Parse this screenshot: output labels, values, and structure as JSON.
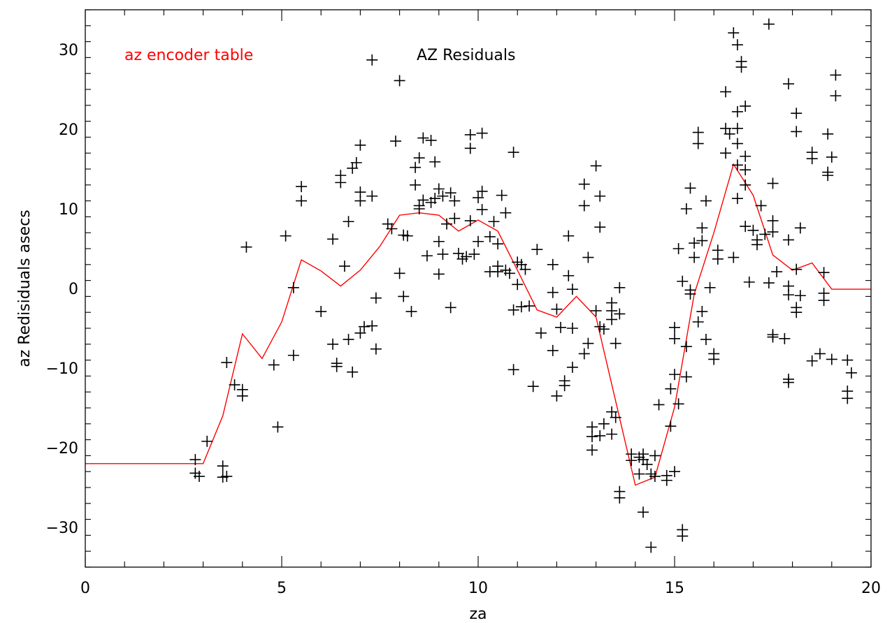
{
  "chart_data": {
    "type": "scatter",
    "xlabel": "za",
    "ylabel": "az Redisiduals asecs",
    "xlim": [
      0,
      20
    ],
    "ylim": [
      -35,
      35
    ],
    "x_ticks": [
      0,
      5,
      10,
      15,
      20
    ],
    "y_ticks": [
      -30,
      -20,
      -10,
      0,
      10,
      20,
      30
    ],
    "x_tick_labels": [
      "0",
      "5",
      "10",
      "15",
      "20"
    ],
    "y_tick_labels": [
      "−30",
      "−20",
      "−10",
      "0",
      "10",
      "20",
      "30"
    ],
    "grid": false,
    "annotations": {
      "series_label": "az encoder table",
      "title_label": "AZ Residuals"
    },
    "colors": {
      "points": "#000000",
      "line": "#ff0000",
      "frame": "#000000"
    },
    "points": [
      [
        2.8,
        -21.5
      ],
      [
        2.8,
        -23.2
      ],
      [
        2.9,
        -23.6
      ],
      [
        3.1,
        -19.2
      ],
      [
        3.5,
        -22.3
      ],
      [
        3.5,
        -23.7
      ],
      [
        3.6,
        -9.3
      ],
      [
        3.6,
        -23.6
      ],
      [
        3.8,
        -12.1
      ],
      [
        4.0,
        -12.7
      ],
      [
        4.0,
        -13.5
      ],
      [
        4.1,
        5.2
      ],
      [
        4.8,
        -9.6
      ],
      [
        4.9,
        -17.4
      ],
      [
        5.1,
        6.6
      ],
      [
        5.3,
        0.1
      ],
      [
        5.3,
        -8.4
      ],
      [
        5.5,
        11.0
      ],
      [
        5.5,
        12.8
      ],
      [
        6.0,
        -2.9
      ],
      [
        6.3,
        6.2
      ],
      [
        6.3,
        -7.0
      ],
      [
        6.4,
        -9.4
      ],
      [
        6.4,
        -9.8
      ],
      [
        6.5,
        13.3
      ],
      [
        6.5,
        14.2
      ],
      [
        6.6,
        2.8
      ],
      [
        6.7,
        8.4
      ],
      [
        6.7,
        -6.4
      ],
      [
        6.8,
        -10.5
      ],
      [
        6.8,
        15.1
      ],
      [
        6.9,
        15.8
      ],
      [
        7.0,
        -5.6
      ],
      [
        7.0,
        12.1
      ],
      [
        7.0,
        11.0
      ],
      [
        7.0,
        18.0
      ],
      [
        7.1,
        -4.8
      ],
      [
        7.3,
        -4.7
      ],
      [
        7.3,
        11.6
      ],
      [
        7.3,
        28.7
      ],
      [
        7.4,
        -1.2
      ],
      [
        7.4,
        -7.6
      ],
      [
        7.7,
        8.1
      ],
      [
        7.8,
        7.5
      ],
      [
        7.9,
        18.5
      ],
      [
        8.0,
        26.1
      ],
      [
        8.0,
        1.9
      ],
      [
        8.1,
        6.7
      ],
      [
        8.1,
        -1.0
      ],
      [
        8.2,
        6.6
      ],
      [
        8.3,
        -2.9
      ],
      [
        8.4,
        13.0
      ],
      [
        8.4,
        15.2
      ],
      [
        8.5,
        16.4
      ],
      [
        8.5,
        10.4
      ],
      [
        8.5,
        10.0
      ],
      [
        8.6,
        18.9
      ],
      [
        8.6,
        11.1
      ],
      [
        8.7,
        4.1
      ],
      [
        8.8,
        18.6
      ],
      [
        8.8,
        10.8
      ],
      [
        8.9,
        15.9
      ],
      [
        8.9,
        11.3
      ],
      [
        9.0,
        5.9
      ],
      [
        9.0,
        1.8
      ],
      [
        9.0,
        12.5
      ],
      [
        9.1,
        11.6
      ],
      [
        9.1,
        4.3
      ],
      [
        9.2,
        8.1
      ],
      [
        9.3,
        -2.4
      ],
      [
        9.3,
        12.0
      ],
      [
        9.4,
        8.8
      ],
      [
        9.4,
        11.0
      ],
      [
        9.5,
        4.4
      ],
      [
        9.6,
        3.7
      ],
      [
        9.7,
        4.0
      ],
      [
        9.8,
        8.5
      ],
      [
        9.8,
        17.6
      ],
      [
        9.8,
        19.3
      ],
      [
        9.9,
        4.3
      ],
      [
        10.0,
        5.9
      ],
      [
        10.0,
        11.4
      ],
      [
        10.1,
        19.5
      ],
      [
        10.1,
        12.2
      ],
      [
        10.1,
        9.9
      ],
      [
        10.3,
        2.1
      ],
      [
        10.3,
        6.5
      ],
      [
        10.4,
        8.4
      ],
      [
        10.5,
        5.6
      ],
      [
        10.5,
        2.8
      ],
      [
        10.5,
        2.1
      ],
      [
        10.6,
        11.7
      ],
      [
        10.7,
        9.5
      ],
      [
        10.7,
        2.3
      ],
      [
        10.8,
        1.9
      ],
      [
        10.9,
        17.1
      ],
      [
        10.9,
        -2.7
      ],
      [
        10.9,
        -10.2
      ],
      [
        11.0,
        3.3
      ],
      [
        11.0,
        0.5
      ],
      [
        11.1,
        3.0
      ],
      [
        11.1,
        -2.3
      ],
      [
        11.2,
        2.4
      ],
      [
        11.3,
        -2.2
      ],
      [
        11.4,
        -12.3
      ],
      [
        11.5,
        4.9
      ],
      [
        11.6,
        -5.6
      ],
      [
        11.9,
        -7.8
      ],
      [
        11.9,
        3.0
      ],
      [
        11.9,
        -0.5
      ],
      [
        12.0,
        -13.5
      ],
      [
        12.0,
        -2.6
      ],
      [
        12.1,
        -4.9
      ],
      [
        12.2,
        -11.6
      ],
      [
        12.2,
        -12.2
      ],
      [
        12.3,
        1.6
      ],
      [
        12.3,
        6.6
      ],
      [
        12.4,
        -0.1
      ],
      [
        12.4,
        -5.0
      ],
      [
        12.4,
        -9.9
      ],
      [
        12.7,
        13.1
      ],
      [
        12.7,
        10.4
      ],
      [
        12.7,
        -8.2
      ],
      [
        12.8,
        3.9
      ],
      [
        12.8,
        -6.9
      ],
      [
        12.9,
        -17.4
      ],
      [
        12.9,
        -20.3
      ],
      [
        12.9,
        -18.6
      ],
      [
        13.0,
        15.4
      ],
      [
        13.0,
        -2.8
      ],
      [
        13.1,
        11.6
      ],
      [
        13.1,
        7.7
      ],
      [
        13.1,
        -4.8
      ],
      [
        13.1,
        -18.5
      ],
      [
        13.2,
        -5.1
      ],
      [
        13.2,
        -17.0
      ],
      [
        13.4,
        -1.8
      ],
      [
        13.4,
        -2.8
      ],
      [
        13.4,
        -3.9
      ],
      [
        13.4,
        -15.5
      ],
      [
        13.4,
        -18.3
      ],
      [
        13.5,
        -6.9
      ],
      [
        13.5,
        -16.2
      ],
      [
        13.6,
        0.1
      ],
      [
        13.6,
        -3.2
      ],
      [
        13.6,
        -25.5
      ],
      [
        13.6,
        -26.3
      ],
      [
        13.9,
        -20.8
      ],
      [
        13.9,
        -21.6
      ],
      [
        14.1,
        -21.2
      ],
      [
        14.1,
        -23.3
      ],
      [
        14.2,
        -20.8
      ],
      [
        14.2,
        -21.5
      ],
      [
        14.2,
        -28.1
      ],
      [
        14.3,
        -22.1
      ],
      [
        14.4,
        -32.5
      ],
      [
        14.4,
        -23.3
      ],
      [
        14.5,
        -21.0
      ],
      [
        14.5,
        -23.6
      ],
      [
        14.6,
        -14.6
      ],
      [
        14.8,
        -24.1
      ],
      [
        14.8,
        -23.5
      ],
      [
        14.9,
        -12.6
      ],
      [
        14.9,
        -17.3
      ],
      [
        15.0,
        -10.8
      ],
      [
        15.0,
        -4.9
      ],
      [
        15.0,
        -6.3
      ],
      [
        15.0,
        -23.0
      ],
      [
        15.1,
        5.0
      ],
      [
        15.1,
        -14.5
      ],
      [
        15.2,
        0.9
      ],
      [
        15.2,
        -30.3
      ],
      [
        15.2,
        -31.1
      ],
      [
        15.3,
        10.0
      ],
      [
        15.3,
        -7.3
      ],
      [
        15.3,
        -11.1
      ],
      [
        15.4,
        12.6
      ],
      [
        15.4,
        -0.7
      ],
      [
        15.4,
        -0.2
      ],
      [
        15.5,
        3.9
      ],
      [
        15.5,
        5.7
      ],
      [
        15.6,
        19.6
      ],
      [
        15.6,
        18.2
      ],
      [
        15.6,
        -4.2
      ],
      [
        15.7,
        6.0
      ],
      [
        15.7,
        -2.9
      ],
      [
        15.7,
        7.6
      ],
      [
        15.8,
        11.0
      ],
      [
        15.8,
        -6.4
      ],
      [
        15.9,
        0.1
      ],
      [
        16.0,
        -8.2
      ],
      [
        16.0,
        -8.9
      ],
      [
        16.1,
        4.8
      ],
      [
        16.1,
        3.7
      ],
      [
        16.3,
        24.7
      ],
      [
        16.3,
        20.1
      ],
      [
        16.3,
        17.0
      ],
      [
        16.4,
        19.4
      ],
      [
        16.5,
        3.9
      ],
      [
        16.5,
        32.1
      ],
      [
        16.6,
        30.6
      ],
      [
        16.6,
        22.2
      ],
      [
        16.6,
        20.1
      ],
      [
        16.6,
        18.2
      ],
      [
        16.6,
        15.5
      ],
      [
        16.6,
        11.3
      ],
      [
        16.7,
        28.5
      ],
      [
        16.7,
        27.8
      ],
      [
        16.8,
        16.6
      ],
      [
        16.8,
        14.9
      ],
      [
        16.8,
        13.0
      ],
      [
        16.8,
        22.9
      ],
      [
        16.8,
        7.8
      ],
      [
        16.9,
        0.8
      ],
      [
        17.0,
        7.3
      ],
      [
        17.1,
        5.5
      ],
      [
        17.1,
        6.1
      ],
      [
        17.2,
        10.4
      ],
      [
        17.3,
        6.8
      ],
      [
        17.4,
        33.2
      ],
      [
        17.4,
        0.7
      ],
      [
        17.5,
        13.2
      ],
      [
        17.5,
        8.5
      ],
      [
        17.5,
        7.1
      ],
      [
        17.5,
        -5.8
      ],
      [
        17.5,
        -6.1
      ],
      [
        17.6,
        2.1
      ],
      [
        17.8,
        -6.3
      ],
      [
        17.9,
        25.7
      ],
      [
        17.9,
        6.1
      ],
      [
        17.9,
        0.3
      ],
      [
        17.9,
        -0.8
      ],
      [
        17.9,
        -11.4
      ],
      [
        17.9,
        -11.8
      ],
      [
        18.1,
        22.0
      ],
      [
        18.1,
        19.7
      ],
      [
        18.1,
        2.4
      ],
      [
        18.1,
        -2.4
      ],
      [
        18.1,
        -3.0
      ],
      [
        18.2,
        7.6
      ],
      [
        18.2,
        -0.9
      ],
      [
        18.5,
        17.1
      ],
      [
        18.5,
        16.3
      ],
      [
        18.5,
        -9.1
      ],
      [
        18.7,
        -8.2
      ],
      [
        18.8,
        2.0
      ],
      [
        18.8,
        -0.6
      ],
      [
        18.8,
        -1.5
      ],
      [
        18.9,
        19.4
      ],
      [
        18.9,
        14.6
      ],
      [
        18.9,
        14.2
      ],
      [
        19.0,
        -8.9
      ],
      [
        19.0,
        16.5
      ],
      [
        19.1,
        26.8
      ],
      [
        19.1,
        24.2
      ],
      [
        19.4,
        -9.0
      ],
      [
        19.4,
        -12.9
      ],
      [
        19.4,
        -13.8
      ],
      [
        19.5,
        -10.6
      ]
    ],
    "line": [
      [
        0.0,
        -22.0
      ],
      [
        3.0,
        -22.0
      ],
      [
        3.5,
        -16.0
      ],
      [
        4.0,
        -5.7
      ],
      [
        4.5,
        -8.8
      ],
      [
        5.0,
        -4.2
      ],
      [
        5.5,
        3.6
      ],
      [
        6.0,
        2.2
      ],
      [
        6.5,
        0.3
      ],
      [
        7.0,
        2.3
      ],
      [
        7.5,
        5.3
      ],
      [
        8.0,
        9.2
      ],
      [
        8.5,
        9.5
      ],
      [
        9.0,
        9.2
      ],
      [
        9.5,
        7.2
      ],
      [
        10.0,
        8.6
      ],
      [
        10.5,
        7.2
      ],
      [
        11.0,
        2.3
      ],
      [
        11.5,
        -2.7
      ],
      [
        12.0,
        -3.6
      ],
      [
        12.5,
        -1.0
      ],
      [
        13.0,
        -3.6
      ],
      [
        14.0,
        -24.7
      ],
      [
        14.5,
        -23.7
      ],
      [
        15.0,
        -14.9
      ],
      [
        15.5,
        -0.7
      ],
      [
        16.0,
        7.0
      ],
      [
        16.5,
        15.6
      ],
      [
        17.0,
        11.7
      ],
      [
        17.5,
        4.2
      ],
      [
        18.0,
        2.3
      ],
      [
        18.5,
        3.2
      ],
      [
        19.0,
        -0.1
      ],
      [
        20.0,
        -0.1
      ]
    ]
  }
}
